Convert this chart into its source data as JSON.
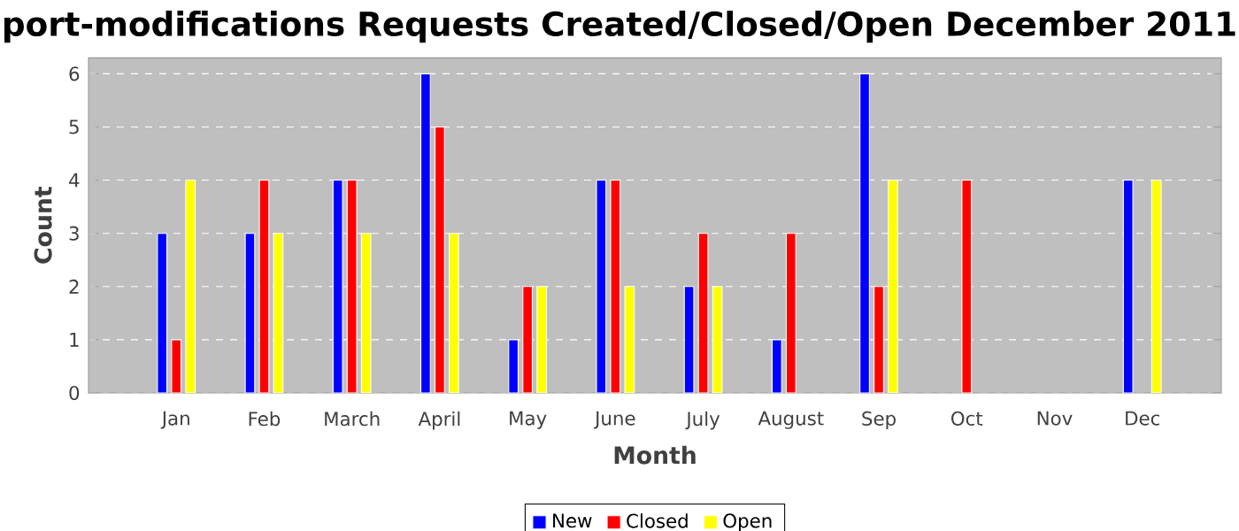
{
  "chart_data": {
    "type": "bar",
    "title": "port-modifications Requests Created/Closed/Open December 2011",
    "xlabel": "Month",
    "ylabel": "Count",
    "categories": [
      "Jan",
      "Feb",
      "March",
      "April",
      "May",
      "June",
      "July",
      "August",
      "Sep",
      "Oct",
      "Nov",
      "Dec"
    ],
    "series": [
      {
        "name": "New",
        "color": "#0000ff",
        "values": [
          3,
          3,
          4,
          6,
          1,
          4,
          2,
          1,
          6,
          null,
          null,
          4
        ]
      },
      {
        "name": "Closed",
        "color": "#ff0000",
        "values": [
          1,
          4,
          4,
          5,
          2,
          4,
          3,
          3,
          2,
          4,
          null,
          null
        ]
      },
      {
        "name": "Open",
        "color": "#ffff00",
        "values": [
          4,
          3,
          3,
          3,
          2,
          2,
          2,
          null,
          4,
          null,
          null,
          4
        ]
      }
    ],
    "ylim": [
      0,
      6.3
    ],
    "yticks": [
      0,
      1,
      2,
      3,
      4,
      5,
      6
    ],
    "grid": "y",
    "legend": "bottom"
  }
}
